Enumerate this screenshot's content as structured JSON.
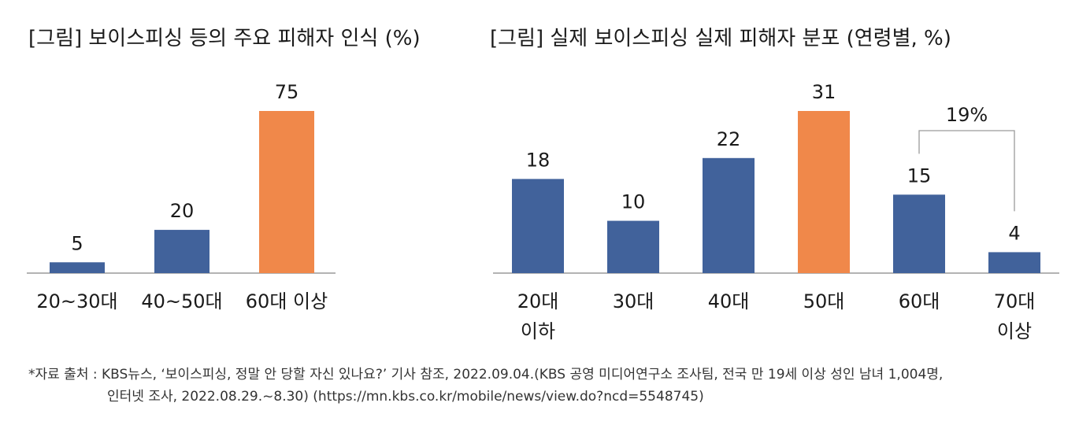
{
  "chart_data": [
    {
      "type": "bar",
      "title": "[그림] 보이스피싱 등의 주요 피해자 인식 (%)",
      "categories": [
        "20~30대",
        "40~50대",
        "60대 이상"
      ],
      "values": [
        5,
        20,
        75
      ],
      "highlight_index": 2,
      "ylim": [
        0,
        75
      ],
      "grid": false,
      "legend": "none"
    },
    {
      "type": "bar",
      "title": "[그림] 실제 보이스피싱 실제 피해자 분포 (연령별, %)",
      "categories": [
        [
          "20대",
          "이하"
        ],
        [
          "30대"
        ],
        [
          "40대"
        ],
        [
          "50대"
        ],
        [
          "60대"
        ],
        [
          "70대",
          "이상"
        ]
      ],
      "values": [
        18,
        10,
        22,
        31,
        15,
        4
      ],
      "highlight_index": 3,
      "ylim": [
        0,
        31
      ],
      "grid": false,
      "legend": "none",
      "annotation": {
        "text": "19%",
        "spans": [
          "60대",
          "70대 이상"
        ]
      }
    }
  ],
  "colors": {
    "bar": "#41629b",
    "highlight": "#f0884a",
    "axis": "#9a9a9a",
    "text": "#1a1a1a"
  },
  "footer": {
    "line1": "*자료 출처 : KBS뉴스, ‘보이스피싱, 정말 안 당할 자신 있나요?’ 기사 참조, 2022.09.04.(KBS 공영 미디어연구소 조사팀, 전국 만 19세 이상 성인 남녀 1,004명,",
    "line2": "인터넷 조사, 2022.08.29.~8.30) (https://mn.kbs.co.kr/mobile/news/view.do?ncd=5548745)"
  }
}
